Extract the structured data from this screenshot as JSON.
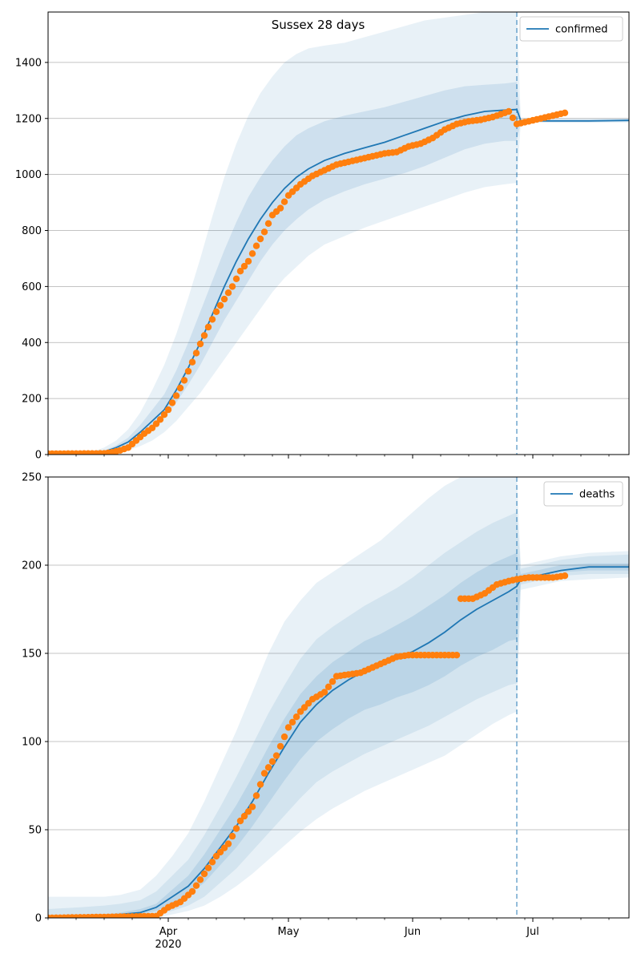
{
  "figure_title": "Sussex 28 days",
  "chart_data": [
    {
      "type": "line",
      "panel": "top",
      "legend": "confirmed",
      "legend_position": "top-right",
      "grid": "horizontal",
      "colors": {
        "line": "#1f77b4",
        "points": "#ff7f0e",
        "band": "#1f77b4",
        "cutoff": "#1f77b4"
      },
      "x_range": [
        "2020-03-02",
        "2020-07-25"
      ],
      "ylim": [
        0,
        1580
      ],
      "yticks": [
        0,
        200,
        400,
        600,
        800,
        1000,
        1200,
        1400
      ],
      "cutoff_date": "2020-06-27",
      "model": {
        "dates": [
          "2020-03-02",
          "2020-03-09",
          "2020-03-13",
          "2020-03-16",
          "2020-03-19",
          "2020-03-22",
          "2020-03-25",
          "2020-03-28",
          "2020-03-31",
          "2020-04-03",
          "2020-04-06",
          "2020-04-09",
          "2020-04-12",
          "2020-04-15",
          "2020-04-18",
          "2020-04-21",
          "2020-04-24",
          "2020-04-27",
          "2020-04-30",
          "2020-05-03",
          "2020-05-06",
          "2020-05-10",
          "2020-05-15",
          "2020-05-20",
          "2020-05-25",
          "2020-05-30",
          "2020-06-04",
          "2020-06-09",
          "2020-06-14",
          "2020-06-19",
          "2020-06-24",
          "2020-06-27",
          "2020-06-28",
          "2020-07-05",
          "2020-07-15",
          "2020-07-25"
        ],
        "median": [
          0,
          0,
          3,
          10,
          25,
          45,
          80,
          120,
          160,
          230,
          310,
          400,
          500,
          600,
          690,
          770,
          840,
          900,
          950,
          990,
          1020,
          1050,
          1075,
          1095,
          1115,
          1140,
          1165,
          1190,
          1210,
          1225,
          1230,
          1232,
          1192,
          1191,
          1191,
          1193
        ],
        "band_50": [
          [
            0,
            0
          ],
          [
            0,
            0
          ],
          [
            2,
            4
          ],
          [
            6,
            14
          ],
          [
            18,
            33
          ],
          [
            32,
            60
          ],
          [
            60,
            105
          ],
          [
            95,
            160
          ],
          [
            130,
            215
          ],
          [
            185,
            300
          ],
          [
            250,
            400
          ],
          [
            320,
            510
          ],
          [
            400,
            620
          ],
          [
            480,
            730
          ],
          [
            550,
            830
          ],
          [
            620,
            920
          ],
          [
            690,
            990
          ],
          [
            750,
            1050
          ],
          [
            800,
            1100
          ],
          [
            840,
            1140
          ],
          [
            875,
            1165
          ],
          [
            910,
            1190
          ],
          [
            940,
            1210
          ],
          [
            965,
            1225
          ],
          [
            985,
            1240
          ],
          [
            1005,
            1260
          ],
          [
            1030,
            1280
          ],
          [
            1060,
            1300
          ],
          [
            1090,
            1315
          ],
          [
            1110,
            1320
          ],
          [
            1120,
            1325
          ],
          [
            1120,
            1330
          ],
          [
            1187,
            1197
          ],
          [
            1187,
            1197
          ],
          [
            1187,
            1197
          ],
          [
            1189,
            1199
          ]
        ],
        "band_outer": [
          [
            0,
            0
          ],
          [
            0,
            0
          ],
          [
            0,
            10
          ],
          [
            2,
            25
          ],
          [
            8,
            50
          ],
          [
            15,
            90
          ],
          [
            30,
            150
          ],
          [
            50,
            230
          ],
          [
            80,
            320
          ],
          [
            120,
            430
          ],
          [
            170,
            560
          ],
          [
            220,
            700
          ],
          [
            280,
            850
          ],
          [
            340,
            990
          ],
          [
            400,
            1110
          ],
          [
            460,
            1210
          ],
          [
            520,
            1290
          ],
          [
            580,
            1350
          ],
          [
            630,
            1400
          ],
          [
            670,
            1430
          ],
          [
            710,
            1450
          ],
          [
            750,
            1460
          ],
          [
            780,
            1470
          ],
          [
            810,
            1490
          ],
          [
            835,
            1510
          ],
          [
            860,
            1530
          ],
          [
            885,
            1550
          ],
          [
            910,
            1560
          ],
          [
            935,
            1570
          ],
          [
            955,
            1580
          ],
          [
            965,
            1580
          ],
          [
            970,
            1580
          ],
          [
            1186,
            1198
          ],
          [
            1185,
            1199
          ],
          [
            1185,
            1199
          ],
          [
            1186,
            1200
          ]
        ]
      },
      "observed": {
        "dates": [
          "2020-03-02",
          "2020-03-16",
          "2020-03-18",
          "2020-03-20",
          "2020-03-22",
          "2020-03-24",
          "2020-03-26",
          "2020-03-28",
          "2020-03-30",
          "2020-04-01",
          "2020-04-03",
          "2020-04-05",
          "2020-04-07",
          "2020-04-09",
          "2020-04-11",
          "2020-04-13",
          "2020-04-15",
          "2020-04-17",
          "2020-04-19",
          "2020-04-21",
          "2020-04-23",
          "2020-04-25",
          "2020-04-27",
          "2020-04-29",
          "2020-05-01",
          "2020-05-04",
          "2020-05-07",
          "2020-05-10",
          "2020-05-13",
          "2020-05-16",
          "2020-05-19",
          "2020-05-22",
          "2020-05-25",
          "2020-05-28",
          "2020-05-31",
          "2020-06-03",
          "2020-06-06",
          "2020-06-09",
          "2020-06-12",
          "2020-06-15",
          "2020-06-18",
          "2020-06-21",
          "2020-06-24",
          "2020-06-25",
          "2020-06-27",
          "2020-06-30",
          "2020-07-03",
          "2020-07-06",
          "2020-07-09"
        ],
        "values": [
          3,
          4,
          8,
          15,
          25,
          50,
          75,
          95,
          125,
          160,
          210,
          265,
          330,
          395,
          455,
          510,
          555,
          600,
          655,
          690,
          745,
          795,
          855,
          880,
          925,
          965,
          995,
          1015,
          1035,
          1045,
          1055,
          1065,
          1075,
          1080,
          1100,
          1110,
          1130,
          1160,
          1180,
          1190,
          1195,
          1205,
          1220,
          1225,
          1180,
          1190,
          1200,
          1210,
          1220
        ]
      }
    },
    {
      "type": "line",
      "panel": "bottom",
      "legend": "deaths",
      "legend_position": "top-right",
      "grid": "horizontal",
      "colors": {
        "line": "#1f77b4",
        "points": "#ff7f0e",
        "band": "#1f77b4",
        "cutoff": "#1f77b4"
      },
      "x_range": [
        "2020-03-02",
        "2020-07-25"
      ],
      "x_ticks": [
        {
          "date": "2020-04-01",
          "label": "Apr",
          "sublabel": "2020"
        },
        {
          "date": "2020-05-01",
          "label": "May"
        },
        {
          "date": "2020-06-01",
          "label": "Jun"
        },
        {
          "date": "2020-07-01",
          "label": "Jul"
        }
      ],
      "ylim": [
        0,
        250
      ],
      "yticks": [
        0,
        50,
        100,
        150,
        200,
        250
      ],
      "cutoff_date": "2020-06-27",
      "model": {
        "dates": [
          "2020-03-02",
          "2020-03-10",
          "2020-03-16",
          "2020-03-20",
          "2020-03-25",
          "2020-03-29",
          "2020-04-02",
          "2020-04-06",
          "2020-04-10",
          "2020-04-14",
          "2020-04-18",
          "2020-04-22",
          "2020-04-26",
          "2020-04-30",
          "2020-05-04",
          "2020-05-08",
          "2020-05-12",
          "2020-05-16",
          "2020-05-20",
          "2020-05-24",
          "2020-05-28",
          "2020-06-01",
          "2020-06-05",
          "2020-06-09",
          "2020-06-13",
          "2020-06-17",
          "2020-06-21",
          "2020-06-25",
          "2020-06-27",
          "2020-06-28",
          "2020-07-02",
          "2020-07-08",
          "2020-07-15",
          "2020-07-25"
        ],
        "median": [
          0,
          0,
          1,
          2,
          3,
          6,
          12,
          18,
          28,
          40,
          52,
          66,
          82,
          97,
          111,
          121,
          129,
          135,
          140,
          143,
          147,
          151,
          156,
          162,
          169,
          175,
          180,
          185,
          188,
          192,
          194,
          197,
          199,
          199
        ],
        "band_50": [
          [
            0,
            0
          ],
          [
            0,
            0
          ],
          [
            0,
            2
          ],
          [
            1,
            3
          ],
          [
            2,
            5
          ],
          [
            4,
            8
          ],
          [
            8,
            16
          ],
          [
            13,
            24
          ],
          [
            20,
            36
          ],
          [
            30,
            50
          ],
          [
            40,
            64
          ],
          [
            52,
            80
          ],
          [
            65,
            97
          ],
          [
            78,
            113
          ],
          [
            90,
            127
          ],
          [
            100,
            137
          ],
          [
            107,
            145
          ],
          [
            113,
            151
          ],
          [
            118,
            157
          ],
          [
            121,
            161
          ],
          [
            125,
            166
          ],
          [
            128,
            171
          ],
          [
            132,
            177
          ],
          [
            137,
            183
          ],
          [
            143,
            190
          ],
          [
            148,
            196
          ],
          [
            152,
            201
          ],
          [
            157,
            205
          ],
          [
            158,
            207
          ],
          [
            191,
            195
          ],
          [
            193,
            197
          ],
          [
            196,
            200
          ],
          [
            197,
            201
          ],
          [
            197,
            201
          ]
        ],
        "band_mid": [
          [
            0,
            5
          ],
          [
            0,
            6
          ],
          [
            0,
            7
          ],
          [
            0,
            8
          ],
          [
            1,
            10
          ],
          [
            2,
            15
          ],
          [
            4,
            24
          ],
          [
            7,
            33
          ],
          [
            12,
            47
          ],
          [
            20,
            63
          ],
          [
            28,
            80
          ],
          [
            38,
            98
          ],
          [
            48,
            116
          ],
          [
            58,
            132
          ],
          [
            68,
            147
          ],
          [
            77,
            158
          ],
          [
            83,
            165
          ],
          [
            88,
            171
          ],
          [
            93,
            177
          ],
          [
            97,
            182
          ],
          [
            101,
            187
          ],
          [
            105,
            193
          ],
          [
            109,
            200
          ],
          [
            114,
            207
          ],
          [
            119,
            213
          ],
          [
            124,
            219
          ],
          [
            128,
            224
          ],
          [
            132,
            228
          ],
          [
            133,
            230
          ],
          [
            189,
            198
          ],
          [
            191,
            200
          ],
          [
            194,
            203
          ],
          [
            195,
            205
          ],
          [
            195,
            206
          ]
        ],
        "band_outer": [
          [
            0,
            12
          ],
          [
            0,
            12
          ],
          [
            0,
            12
          ],
          [
            0,
            13
          ],
          [
            0,
            16
          ],
          [
            0,
            24
          ],
          [
            2,
            35
          ],
          [
            4,
            48
          ],
          [
            7,
            66
          ],
          [
            12,
            86
          ],
          [
            18,
            106
          ],
          [
            25,
            128
          ],
          [
            33,
            150
          ],
          [
            41,
            168
          ],
          [
            49,
            180
          ],
          [
            56,
            190
          ],
          [
            62,
            196
          ],
          [
            67,
            202
          ],
          [
            72,
            208
          ],
          [
            76,
            214
          ],
          [
            80,
            222
          ],
          [
            84,
            230
          ],
          [
            88,
            238
          ],
          [
            92,
            245
          ],
          [
            98,
            250
          ],
          [
            104,
            250
          ],
          [
            110,
            250
          ],
          [
            115,
            250
          ],
          [
            117,
            250
          ],
          [
            186,
            200
          ],
          [
            188,
            202
          ],
          [
            191,
            205
          ],
          [
            192,
            207
          ],
          [
            193,
            208
          ]
        ]
      },
      "observed": {
        "dates": [
          "2020-03-02",
          "2020-03-29",
          "2020-04-01",
          "2020-04-04",
          "2020-04-07",
          "2020-04-10",
          "2020-04-13",
          "2020-04-16",
          "2020-04-19",
          "2020-04-22",
          "2020-04-25",
          "2020-04-28",
          "2020-05-01",
          "2020-05-04",
          "2020-05-07",
          "2020-05-10",
          "2020-05-13",
          "2020-05-16",
          "2020-05-19",
          "2020-05-22",
          "2020-05-25",
          "2020-05-28",
          "2020-05-31",
          "2020-06-03",
          "2020-06-06",
          "2020-06-09",
          "2020-06-12",
          "2020-06-13",
          "2020-06-16",
          "2020-06-19",
          "2020-06-22",
          "2020-06-25",
          "2020-06-27",
          "2020-06-30",
          "2020-07-03",
          "2020-07-06",
          "2020-07-09"
        ],
        "values": [
          0,
          1,
          6,
          9,
          15,
          25,
          35,
          42,
          55,
          63,
          82,
          92,
          108,
          117,
          124,
          128,
          137,
          138,
          139,
          142,
          145,
          148,
          149,
          149,
          149,
          149,
          149,
          181,
          181,
          184,
          189,
          191,
          192,
          193,
          193,
          193,
          194
        ]
      }
    }
  ]
}
